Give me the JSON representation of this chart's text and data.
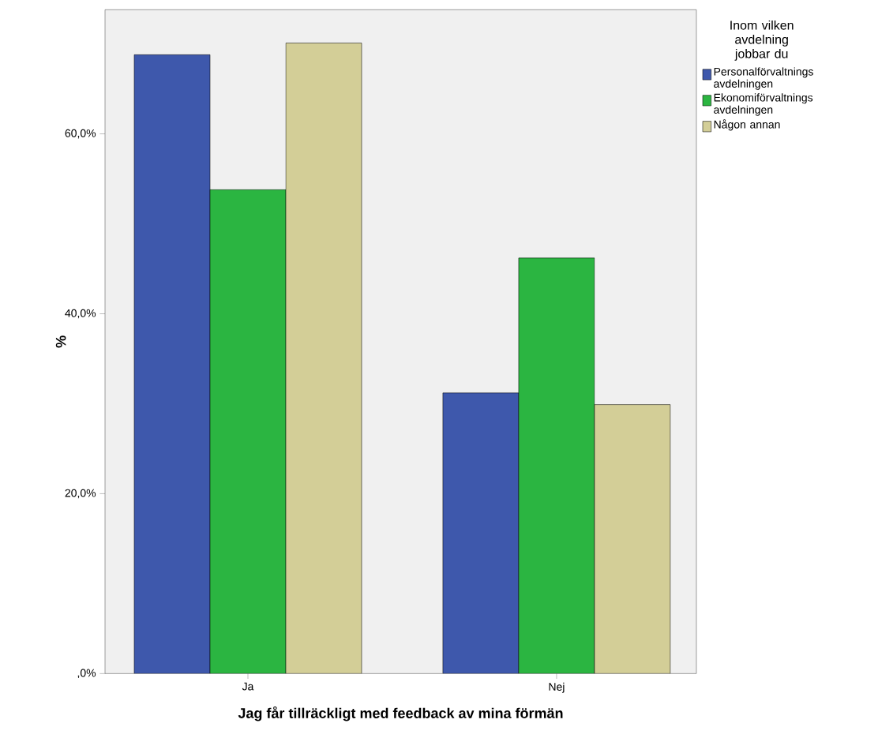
{
  "chart_data": {
    "type": "bar",
    "xlabel": "Jag får tillräckligt med feedback av mina förmän",
    "ylabel": "%",
    "legend_title": "Inom vilken avdelning jobbar du",
    "categories": [
      "Ja",
      "Nej"
    ],
    "series": [
      {
        "name": "Personalförvaltnings avdelningen",
        "color": "#3e58ac",
        "values": [
          68.8,
          31.2
        ]
      },
      {
        "name": "Ekonomiförvaltnings avdelningen",
        "color": "#2bb541",
        "values": [
          53.8,
          46.2
        ]
      },
      {
        "name": "Någon annan",
        "color": "#d3ce97",
        "values": [
          70.1,
          29.9
        ]
      }
    ],
    "ylim": [
      0,
      73.8
    ],
    "yticks": [
      {
        "value": 0,
        "label": ",0%"
      },
      {
        "value": 20,
        "label": "20,0%"
      },
      {
        "value": 40,
        "label": "40,0%"
      },
      {
        "value": 60,
        "label": "60,0%"
      }
    ],
    "grid": false,
    "legend": "right"
  }
}
